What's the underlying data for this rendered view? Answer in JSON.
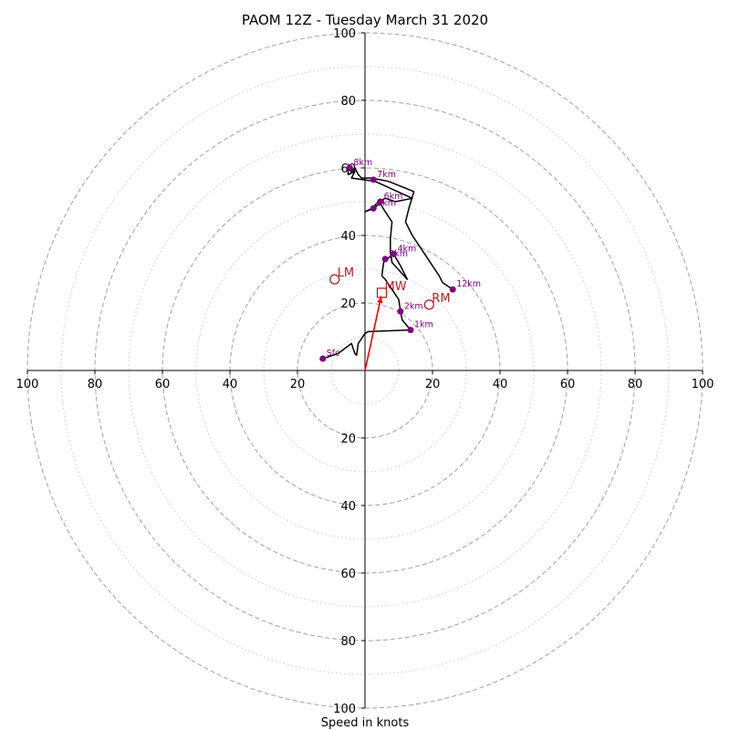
{
  "chart_data": {
    "type": "scatter",
    "title": "PAOM 12Z - Tuesday March 31 2020",
    "xlabel": "Speed in knots",
    "xlim": [
      -100,
      100
    ],
    "ylim": [
      -100,
      100
    ],
    "ring_major": [
      20,
      40,
      60,
      80,
      100
    ],
    "ring_minor": [
      10,
      30,
      50,
      70,
      90
    ],
    "x_tick_labels": [
      "100",
      "80",
      "60",
      "40",
      "20",
      "20",
      "40",
      "60",
      "80",
      "100"
    ],
    "x_tick_values": [
      -100,
      -80,
      -60,
      -40,
      -20,
      20,
      40,
      60,
      80,
      100
    ],
    "y_tick_labels": [
      "100",
      "80",
      "60",
      "40",
      "20",
      "20",
      "40",
      "60",
      "80",
      "100"
    ],
    "y_tick_values": [
      100,
      80,
      60,
      40,
      20,
      -20,
      -40,
      -60,
      -80,
      -100
    ],
    "hodograph": {
      "color": "#000000",
      "points": [
        [
          -12.5,
          3.5
        ],
        [
          -8,
          5
        ],
        [
          -4,
          8
        ],
        [
          -3,
          5
        ],
        [
          -2.5,
          4.5
        ],
        [
          -2,
          8
        ],
        [
          0,
          11
        ],
        [
          1,
          11.5
        ],
        [
          13.5,
          12
        ],
        [
          11,
          15
        ],
        [
          10.5,
          17.5
        ],
        [
          10,
          21
        ],
        [
          8,
          24
        ],
        [
          6,
          27
        ],
        [
          5,
          28
        ],
        [
          5.5,
          32
        ],
        [
          6.5,
          33
        ],
        [
          8.5,
          34.5
        ],
        [
          10.5,
          31
        ],
        [
          12.5,
          27
        ],
        [
          8,
          32
        ],
        [
          7.5,
          35
        ],
        [
          7.5,
          39
        ],
        [
          8,
          44
        ],
        [
          6,
          47
        ],
        [
          4.5,
          49.5
        ],
        [
          2.5,
          48
        ],
        [
          0,
          47
        ],
        [
          2,
          48
        ],
        [
          4,
          50
        ],
        [
          6,
          51
        ],
        [
          9,
          50
        ],
        [
          14,
          51
        ],
        [
          3,
          56
        ],
        [
          -4,
          57
        ],
        [
          -3,
          59
        ],
        [
          -5,
          58
        ],
        [
          -5,
          61
        ],
        [
          -4,
          59
        ],
        [
          -3,
          60
        ],
        [
          -2,
          58
        ],
        [
          -1,
          57
        ],
        [
          2,
          57
        ],
        [
          7,
          56
        ],
        [
          14.5,
          53
        ],
        [
          13,
          48
        ],
        [
          12,
          44
        ],
        [
          14,
          40
        ],
        [
          16,
          37
        ],
        [
          18,
          34
        ],
        [
          20,
          31
        ],
        [
          22,
          28
        ],
        [
          23,
          26
        ],
        [
          26,
          24
        ]
      ]
    },
    "height_markers": [
      {
        "label": "Sfc",
        "x": -12.5,
        "y": 3.5
      },
      {
        "label": "1km",
        "x": 13.5,
        "y": 12
      },
      {
        "label": "2km",
        "x": 10.5,
        "y": 17.5
      },
      {
        "label": "3km",
        "x": 6,
        "y": 33
      },
      {
        "label": "4km",
        "x": 8.5,
        "y": 34.5
      },
      {
        "label": "5km",
        "x": 2.5,
        "y": 48
      },
      {
        "label": "6km",
        "x": 4.5,
        "y": 50
      },
      {
        "label": "7km",
        "x": 2.5,
        "y": 56.5
      },
      {
        "label": "8km",
        "x": -4.5,
        "y": 60
      },
      {
        "label": "12km",
        "x": 26,
        "y": 24
      }
    ],
    "storm_motion": [
      {
        "label": "LM",
        "marker": "circle",
        "x": -9,
        "y": 27
      },
      {
        "label": "RM",
        "marker": "circle",
        "x": 19,
        "y": 19.5
      },
      {
        "label": "MW",
        "marker": "square",
        "x": 5,
        "y": 23
      }
    ],
    "shear_vector": {
      "from": [
        0,
        0
      ],
      "to": [
        4.8,
        22
      ]
    },
    "colors": {
      "hodograph": "#000000",
      "markers": "#800080",
      "storm_motion": "#b22222",
      "shear_vector": "#ff0000",
      "rings": "#a0a0a0"
    }
  }
}
